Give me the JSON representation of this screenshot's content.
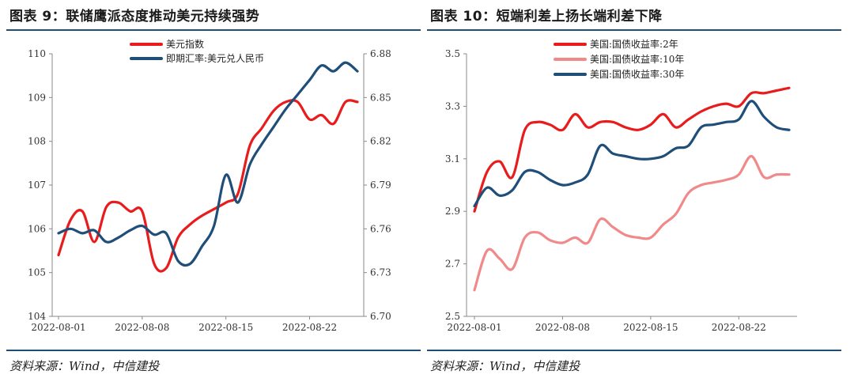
{
  "colors": {
    "red": "#e81c1c",
    "pink": "#f08a8a",
    "navy": "#1f4e79",
    "axis": "#888888",
    "rule": "#1f4e79"
  },
  "left": {
    "title": "图表 9：联储鹰派态度推动美元持续强势",
    "source": "资料来源：Wind，中信建投"
  },
  "right": {
    "title": "图表 10：短端利差上扬长端利差下降",
    "source": "资料来源：Wind，中信建投"
  },
  "chart_data": [
    {
      "type": "line",
      "dual_axis": true,
      "x_ticks": [
        "2022-08-01",
        "2022-08-08",
        "2022-08-15",
        "2022-08-22"
      ],
      "x_tick_pos": [
        0,
        7,
        14,
        21
      ],
      "x_range": [
        0,
        25
      ],
      "y_left": {
        "min": 104,
        "max": 110,
        "ticks": [
          "104",
          "105",
          "106",
          "107",
          "108",
          "109",
          "110"
        ]
      },
      "y_right": {
        "min": 6.7,
        "max": 6.88,
        "ticks": [
          "6.70",
          "6.73",
          "6.76",
          "6.79",
          "6.82",
          "6.85",
          "6.88"
        ]
      },
      "legend_position": "top-center",
      "series": [
        {
          "name": "美元指数",
          "axis": "left",
          "color": "#e81c1c",
          "x": [
            0,
            1,
            2,
            3,
            4,
            5,
            6,
            7,
            8,
            9,
            10,
            11,
            12,
            14,
            15,
            16,
            17,
            18,
            19,
            20,
            21,
            22,
            23,
            24,
            25
          ],
          "y": [
            105.4,
            106.2,
            106.4,
            105.7,
            106.5,
            106.6,
            106.4,
            106.4,
            105.2,
            105.1,
            105.8,
            106.1,
            106.3,
            106.6,
            106.8,
            107.9,
            108.3,
            108.7,
            108.9,
            108.9,
            108.5,
            108.6,
            108.4,
            108.9,
            108.9
          ]
        },
        {
          "name": "即期汇率:美元兑人民币",
          "axis": "right",
          "color": "#1f4e79",
          "x": [
            0,
            1,
            2,
            3,
            4,
            5,
            6,
            7,
            8,
            9,
            10,
            11,
            12,
            13,
            14,
            15,
            16,
            17,
            18,
            19,
            20,
            21,
            22,
            23,
            24,
            25
          ],
          "y": [
            6.757,
            6.76,
            6.757,
            6.759,
            6.751,
            6.754,
            6.759,
            6.762,
            6.756,
            6.757,
            6.738,
            6.736,
            6.748,
            6.762,
            6.797,
            6.778,
            6.804,
            6.818,
            6.83,
            6.842,
            6.852,
            6.862,
            6.872,
            6.868,
            6.874,
            6.868
          ]
        }
      ]
    },
    {
      "type": "line",
      "x_ticks": [
        "2022-08-01",
        "2022-08-08",
        "2022-08-15",
        "2022-08-22"
      ],
      "x_tick_pos": [
        0,
        7,
        14,
        21
      ],
      "x_range": [
        0,
        25
      ],
      "y": {
        "min": 2.5,
        "max": 3.5,
        "ticks": [
          "2.5",
          "2.7",
          "2.9",
          "3.1",
          "3.3",
          "3.5"
        ]
      },
      "legend_position": "top-center",
      "series": [
        {
          "name": "美国:国债收益率:2年",
          "color": "#e81c1c",
          "x": [
            0,
            1,
            2,
            3,
            4,
            5,
            6,
            7,
            8,
            9,
            10,
            11,
            12,
            13,
            14,
            15,
            16,
            17,
            18,
            19,
            20,
            21,
            22,
            23,
            24,
            25
          ],
          "y": [
            2.9,
            3.05,
            3.09,
            3.03,
            3.21,
            3.24,
            3.23,
            3.21,
            3.27,
            3.22,
            3.24,
            3.24,
            3.22,
            3.21,
            3.23,
            3.27,
            3.22,
            3.25,
            3.28,
            3.3,
            3.31,
            3.3,
            3.35,
            3.35,
            3.36,
            3.37
          ]
        },
        {
          "name": "美国:国债收益率:10年",
          "color": "#f08a8a",
          "x": [
            0,
            1,
            2,
            3,
            4,
            5,
            6,
            7,
            8,
            9,
            10,
            11,
            12,
            13,
            14,
            15,
            16,
            17,
            18,
            19,
            20,
            21,
            22,
            23,
            24,
            25
          ],
          "y": [
            2.6,
            2.75,
            2.72,
            2.68,
            2.8,
            2.82,
            2.79,
            2.78,
            2.8,
            2.78,
            2.87,
            2.84,
            2.81,
            2.8,
            2.8,
            2.85,
            2.89,
            2.97,
            3.0,
            3.01,
            3.02,
            3.04,
            3.11,
            3.03,
            3.04,
            3.04
          ]
        },
        {
          "name": "美国:国债收益率:30年",
          "color": "#1f4e79",
          "x": [
            0,
            1,
            2,
            3,
            4,
            5,
            6,
            7,
            8,
            9,
            10,
            11,
            12,
            13,
            14,
            15,
            16,
            17,
            18,
            19,
            20,
            21,
            22,
            23,
            24,
            25
          ],
          "y": [
            2.92,
            2.99,
            2.96,
            2.98,
            3.05,
            3.05,
            3.02,
            3.0,
            3.01,
            3.04,
            3.15,
            3.12,
            3.11,
            3.1,
            3.1,
            3.11,
            3.14,
            3.15,
            3.22,
            3.23,
            3.24,
            3.25,
            3.32,
            3.26,
            3.22,
            3.21
          ]
        }
      ]
    }
  ]
}
